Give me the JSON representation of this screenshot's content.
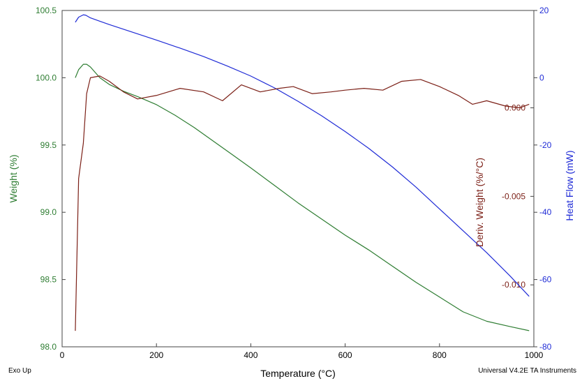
{
  "chart_data": {
    "type": "line",
    "xlabel": "Temperature (°C)",
    "xlim": [
      0,
      1000
    ],
    "x_ticks": [
      "0",
      "200",
      "400",
      "600",
      "800",
      "1000"
    ],
    "grid": false,
    "axes": {
      "weight": {
        "label": "Weight (%)",
        "ylim": [
          98.0,
          100.5
        ],
        "ticks": [
          "98.0",
          "98.5",
          "99.0",
          "99.5",
          "100.0",
          "100.5"
        ],
        "color": "#2e7d32"
      },
      "deriv": {
        "label": "Deriv. Weight (%/°C)",
        "ylim": [
          -0.0135,
          0.0055
        ],
        "ticks": [
          "-0.010",
          "-0.005",
          "0.000"
        ],
        "color": "#7b1f16"
      },
      "heatflow": {
        "label": "Heat Flow (mW)",
        "ylim": [
          -80,
          20
        ],
        "ticks": [
          "-80",
          "-60",
          "-40",
          "-20",
          "0",
          "20"
        ],
        "color": "#1f2bd6"
      }
    },
    "series": [
      {
        "axis": "weight",
        "color": "#2e7d32",
        "x": [
          28,
          35,
          45,
          52,
          60,
          80,
          100,
          130,
          160,
          200,
          240,
          280,
          320,
          360,
          400,
          450,
          500,
          550,
          600,
          650,
          700,
          750,
          800,
          850,
          900,
          950,
          990
        ],
        "y": [
          100.0,
          100.06,
          100.1,
          100.1,
          100.08,
          100.0,
          99.95,
          99.9,
          99.86,
          99.8,
          99.72,
          99.63,
          99.53,
          99.43,
          99.33,
          99.2,
          99.07,
          98.95,
          98.83,
          98.72,
          98.6,
          98.48,
          98.37,
          98.26,
          98.19,
          98.15,
          98.12
        ]
      },
      {
        "axis": "heatflow",
        "color": "#1f2bd6",
        "x": [
          28,
          35,
          45,
          50,
          60,
          80,
          100,
          150,
          200,
          250,
          300,
          350,
          400,
          450,
          500,
          550,
          600,
          650,
          700,
          750,
          800,
          850,
          900,
          950,
          990
        ],
        "y": [
          16.5,
          18.0,
          18.7,
          18.6,
          17.8,
          16.8,
          15.8,
          13.5,
          11.2,
          8.8,
          6.3,
          3.5,
          0.5,
          -3.0,
          -7.0,
          -11.3,
          -16.0,
          -21.0,
          -26.5,
          -32.5,
          -39.0,
          -45.5,
          -52.0,
          -59.0,
          -65.0
        ]
      },
      {
        "axis": "deriv",
        "color": "#7b1f16",
        "x": [
          28,
          35,
          45,
          52,
          60,
          80,
          100,
          130,
          160,
          200,
          250,
          300,
          340,
          380,
          420,
          460,
          490,
          530,
          570,
          600,
          640,
          680,
          720,
          760,
          800,
          840,
          870,
          900,
          940,
          970,
          990
        ],
        "y": [
          -0.0126,
          -0.004,
          -0.002,
          0.0008,
          0.0017,
          0.0018,
          0.0015,
          0.0009,
          0.0005,
          0.0007,
          0.0011,
          0.0009,
          0.0004,
          0.0013,
          0.0009,
          0.0011,
          0.0012,
          0.0008,
          0.0009,
          0.001,
          0.0011,
          0.001,
          0.0015,
          0.0016,
          0.0012,
          0.0007,
          0.0002,
          0.0004,
          0.0001,
          0.0,
          0.0002
        ]
      }
    ]
  },
  "footer": {
    "left_note": "Exo Up",
    "right_note": "Universal V4.2E TA Instruments"
  }
}
